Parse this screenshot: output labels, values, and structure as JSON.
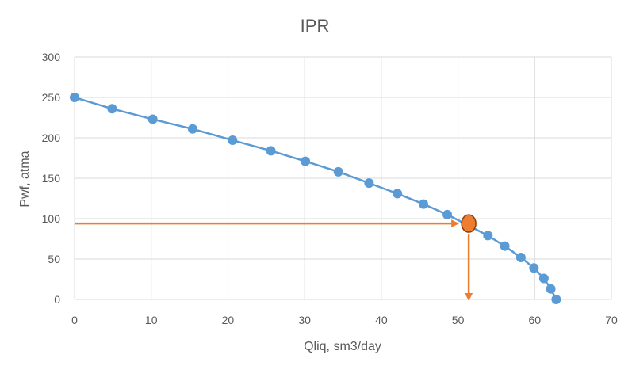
{
  "chart_data": {
    "type": "scatter",
    "title": "IPR",
    "xlabel": "Qliq, sm3/day",
    "ylabel": "Pwf, atma",
    "xlim": [
      0,
      70
    ],
    "ylim": [
      0,
      300
    ],
    "xticks": [
      0,
      10,
      20,
      30,
      40,
      50,
      60,
      70
    ],
    "yticks": [
      0,
      50,
      100,
      150,
      200,
      250,
      300
    ],
    "xtick_labels": [
      "0",
      "10",
      "20",
      "30",
      "40",
      "50",
      "60",
      "70"
    ],
    "ytick_labels": [
      "0",
      "50",
      "100",
      "150",
      "200",
      "250",
      "300"
    ],
    "grid": true,
    "legend": "none",
    "series": [
      {
        "color": "#5b9bd5",
        "x": [
          0,
          4.9,
          10.2,
          15.4,
          20.6,
          25.6,
          30.1,
          34.4,
          38.4,
          42.1,
          45.5,
          48.6,
          53.9,
          56.1,
          58.2,
          59.9,
          61.2,
          62.1,
          62.8
        ],
        "y": [
          250,
          236,
          223,
          211,
          197,
          184,
          171,
          158,
          144,
          131,
          118,
          105,
          79,
          66,
          52,
          39,
          26,
          13,
          0
        ]
      }
    ],
    "operating_point": {
      "x": 51.4,
      "y": 94,
      "color": "#ed7d31"
    },
    "annotation_color": "#ed7d31"
  }
}
